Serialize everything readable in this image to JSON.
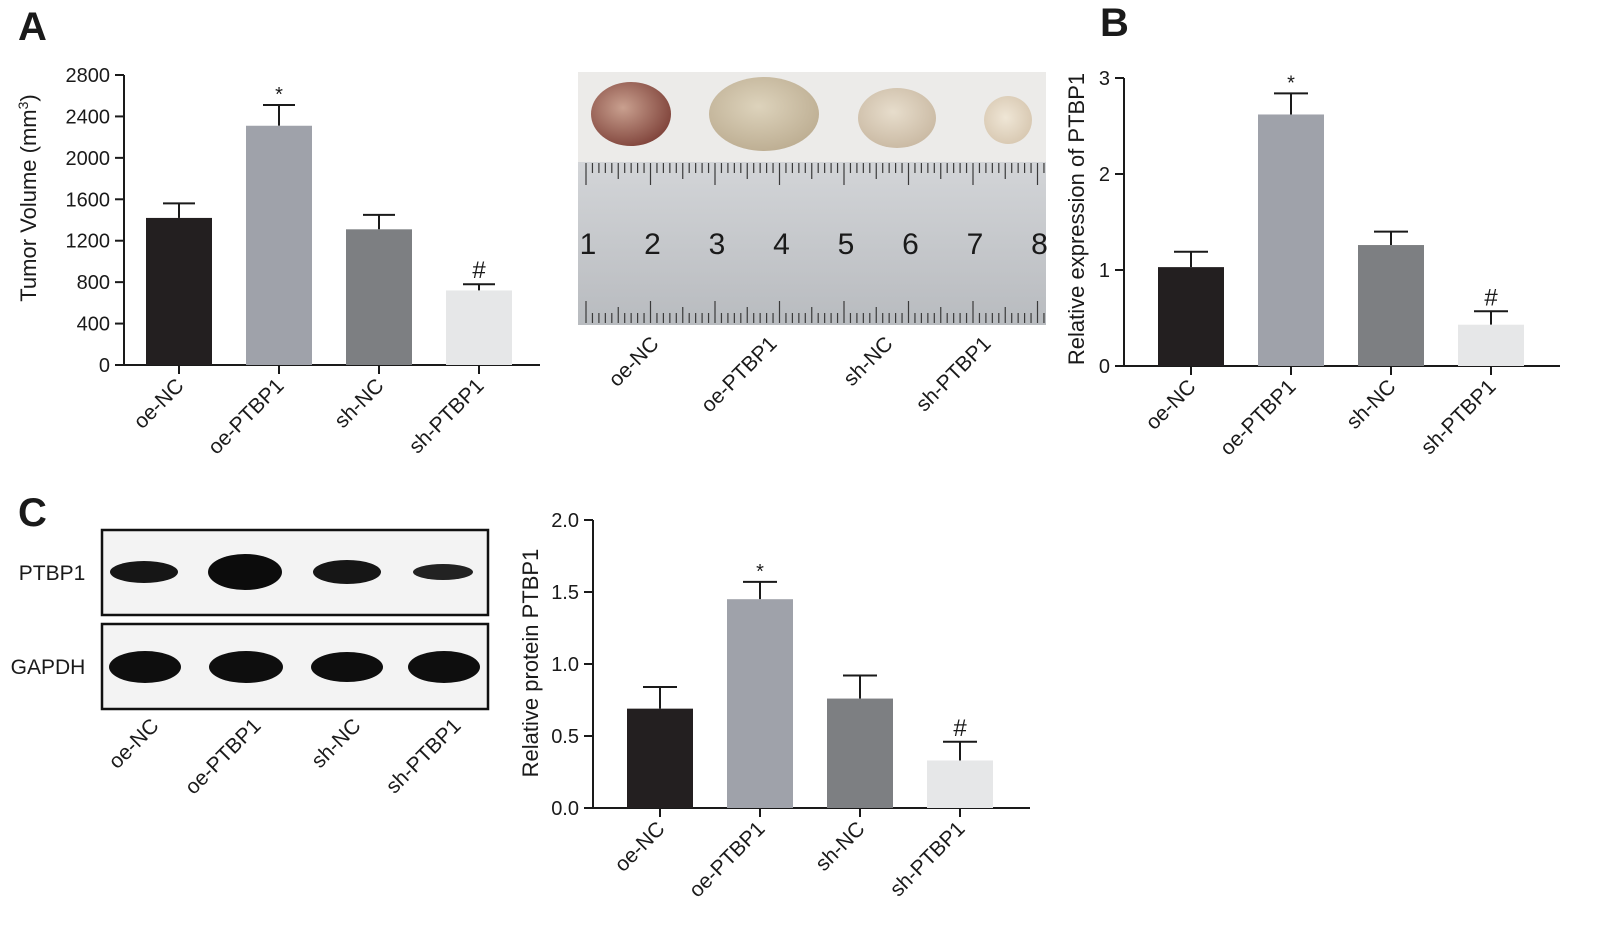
{
  "panels": {
    "a": {
      "letter": "A",
      "chart": {
        "type": "bar",
        "ylabel_main": "Tumor Volume (mm",
        "ylabel_sup": "3",
        "ylabel_end": ")",
        "ylim": [
          0,
          2800
        ],
        "yticks": [
          0,
          400,
          800,
          1200,
          1600,
          2000,
          2400,
          2800
        ],
        "categories": [
          "oe-NC",
          "oe-PTBP1",
          "sh-NC",
          "sh-PTBP1"
        ],
        "values": [
          1420,
          2310,
          1310,
          720
        ],
        "errors": [
          140,
          200,
          140,
          60
        ],
        "annotations": [
          "",
          "*",
          "",
          "#"
        ],
        "colors": [
          "#231f20",
          "#9fa2aa",
          "#7d7f82",
          "#e6e7e8"
        ]
      },
      "photo": {
        "ruler_numbers": [
          "1",
          "2",
          "3",
          "4",
          "5",
          "6",
          "7",
          "8"
        ],
        "labels": [
          "oe-NC",
          "oe-PTBP1",
          "sh-NC",
          "sh-PTBP1"
        ]
      }
    },
    "b": {
      "letter": "B",
      "chart": {
        "type": "bar",
        "ylabel": "Relative expression of PTBP1",
        "ylim": [
          0,
          3
        ],
        "yticks": [
          0,
          1,
          2,
          3
        ],
        "categories": [
          "oe-NC",
          "oe-PTBP1",
          "sh-NC",
          "sh-PTBP1"
        ],
        "values": [
          1.03,
          2.62,
          1.26,
          0.43
        ],
        "errors": [
          0.16,
          0.22,
          0.14,
          0.14
        ],
        "annotations": [
          "",
          "*",
          "",
          "#"
        ],
        "colors": [
          "#231f20",
          "#9fa2aa",
          "#7d7f82",
          "#e6e7e8"
        ]
      }
    },
    "c": {
      "letter": "C",
      "blot": {
        "rows": [
          "PTBP1",
          "GAPDH"
        ],
        "lanes": [
          "oe-NC",
          "oe-PTBP1",
          "sh-NC",
          "sh-PTBP1"
        ]
      },
      "chart": {
        "type": "bar",
        "ylabel": "Relative protein PTBP1",
        "ylim": [
          0,
          2.0
        ],
        "yticks": [
          "0.0",
          "0.5",
          "1.0",
          "1.5",
          "2.0"
        ],
        "categories": [
          "oe-NC",
          "oe-PTBP1",
          "sh-NC",
          "sh-PTBP1"
        ],
        "values": [
          0.69,
          1.45,
          0.76,
          0.33
        ],
        "errors": [
          0.15,
          0.12,
          0.16,
          0.13
        ],
        "annotations": [
          "",
          "*",
          "",
          "#"
        ],
        "colors": [
          "#231f20",
          "#9fa2aa",
          "#7d7f82",
          "#e6e7e8"
        ]
      }
    }
  }
}
